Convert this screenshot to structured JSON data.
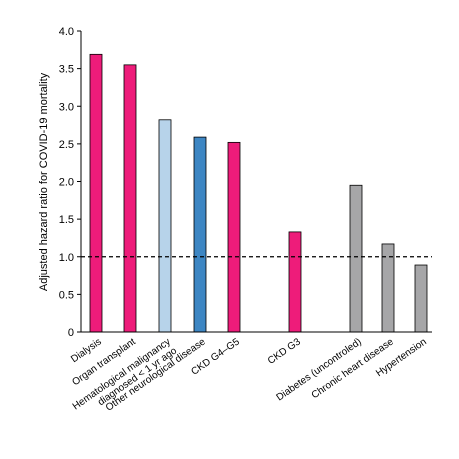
{
  "chart_data": {
    "type": "bar",
    "ylabel": "Adjusted hazard ratio for COVID-19 mortality",
    "xlabel": "",
    "ylim": [
      0,
      4.0
    ],
    "yticks": [
      "0",
      "0.5",
      "1.0",
      "1.5",
      "2.0",
      "2.5",
      "3.0",
      "3.5",
      "4.0"
    ],
    "reference_line": {
      "value": 1.0,
      "style": "dashed"
    },
    "grid": false,
    "categories": [
      {
        "label_lines": [
          "Dialysis"
        ],
        "value": 3.69,
        "color": "#ee1c7a"
      },
      {
        "label_lines": [
          "Organ transplant"
        ],
        "value": 3.55,
        "color": "#ee1c7a"
      },
      {
        "label_lines": [
          "Hematological malignancy",
          "diagnosed < 1 yr ago"
        ],
        "value": 2.82,
        "color": "#b7d3ea"
      },
      {
        "label_lines": [
          "Other neurological disease"
        ],
        "value": 2.59,
        "color": "#3d86c3"
      },
      {
        "label_lines": [
          "CKD G4–G5"
        ],
        "value": 2.52,
        "color": "#ee1c7a"
      },
      {
        "label_lines": [
          "CKD G3"
        ],
        "value": 1.33,
        "color": "#ee1c7a"
      },
      {
        "label_lines": [
          "Diabetes (uncontroled)"
        ],
        "value": 1.95,
        "color": "#a6a6a8"
      },
      {
        "label_lines": [
          "Chronic heart disease"
        ],
        "value": 1.17,
        "color": "#a6a6a8"
      },
      {
        "label_lines": [
          "Hypertension"
        ],
        "value": 0.89,
        "color": "#a6a6a8"
      }
    ]
  }
}
